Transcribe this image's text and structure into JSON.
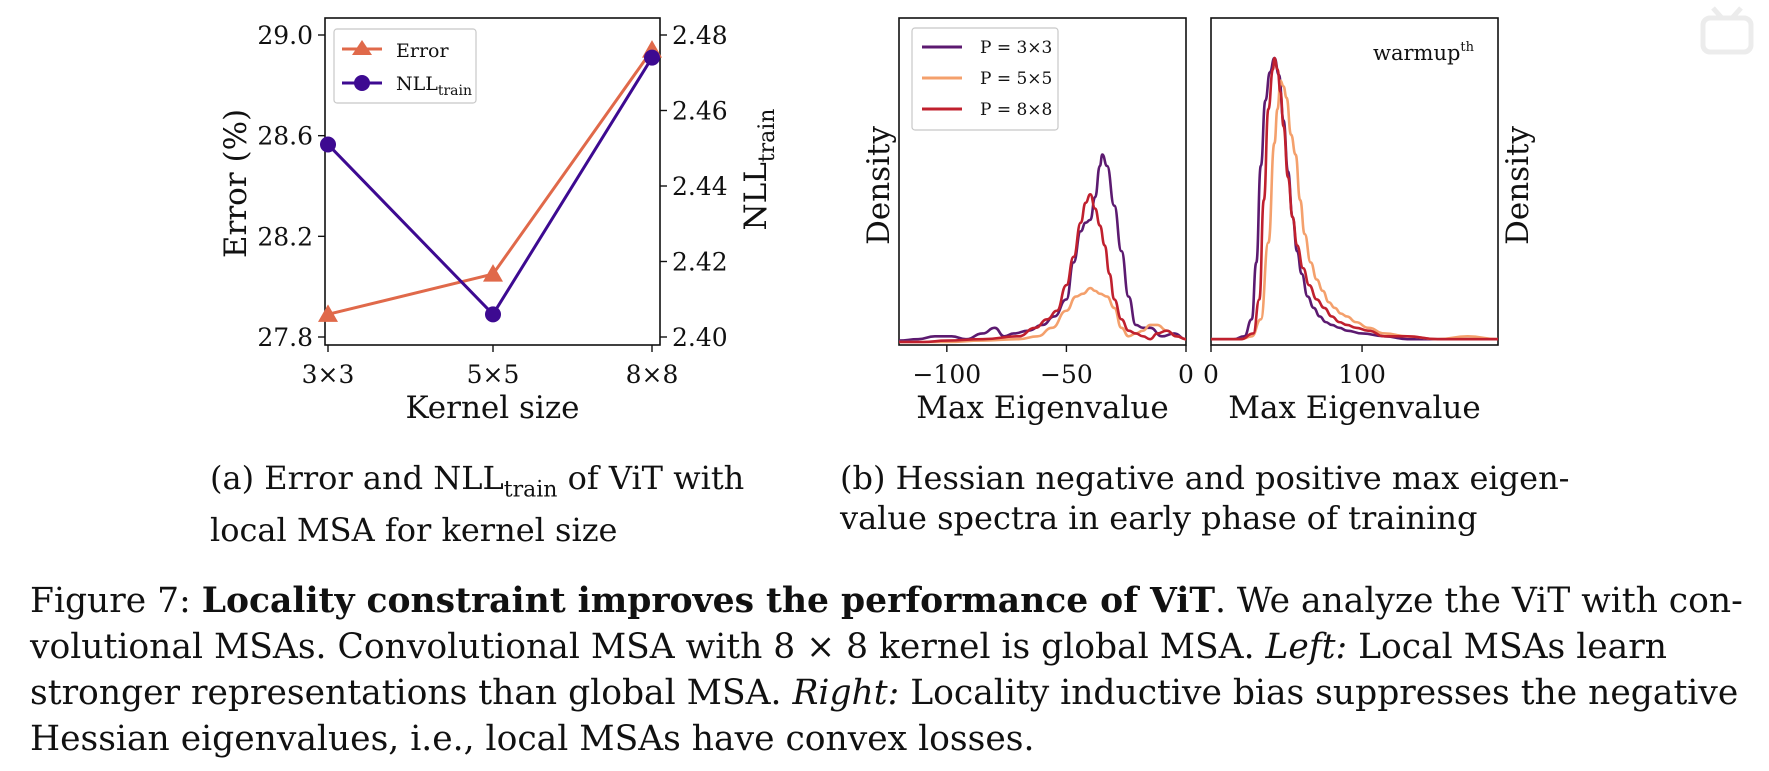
{
  "chart_data": [
    {
      "type": "line",
      "panel": "a",
      "categories": [
        "3×3",
        "5×5",
        "8×8"
      ],
      "xlabel": "Kernel size",
      "ylabel": "Error (%)",
      "ylabel_right_base": "NLL",
      "ylabel_right_sub": "train",
      "ylim": [
        27.8,
        29.0
      ],
      "ylim_right": [
        2.4,
        2.48
      ],
      "yticks": [
        27.8,
        28.2,
        28.6,
        29.0
      ],
      "yticks_right": [
        2.4,
        2.42,
        2.44,
        2.46,
        2.48
      ],
      "tick_labels_left": [
        "27.8",
        "28.2",
        "28.6",
        "29.0"
      ],
      "tick_labels_right": [
        "2.40",
        "2.42",
        "2.44",
        "2.46",
        "2.48"
      ],
      "legend_position": "top-left",
      "series": [
        {
          "name": "Error",
          "axis": "left",
          "marker": "triangle",
          "color": "#e0694a",
          "values": [
            27.89,
            28.05,
            28.94
          ]
        },
        {
          "name_base": "NLL",
          "name_sub": "train",
          "axis": "right",
          "marker": "circle",
          "color": "#3d0a91",
          "values": [
            2.451,
            2.406,
            2.474
          ]
        }
      ]
    },
    {
      "type": "line",
      "panel": "b-negative",
      "xlabel": "Max Eigenvalue",
      "ylabel": "Density",
      "xlim": [
        -120,
        0
      ],
      "ylim": [
        0,
        1
      ],
      "xticks": [
        -100,
        -50,
        0
      ],
      "tick_labels_x": [
        "−100",
        "−50",
        "0"
      ],
      "legend_position": "top-left",
      "series": [
        {
          "name": "P = 3×3",
          "color": "#5c1a70",
          "x": [
            -120,
            -112,
            -105,
            -98,
            -92,
            -85,
            -80,
            -76,
            -72,
            -66,
            -60,
            -55,
            -50,
            -47,
            -44,
            -42,
            -40,
            -38,
            -36,
            -35,
            -33,
            -30,
            -27,
            -24,
            -21,
            -18,
            -15,
            -10,
            -5,
            0
          ],
          "y": [
            0.005,
            0.01,
            0.02,
            0.02,
            0.01,
            0.03,
            0.05,
            0.02,
            0.03,
            0.04,
            0.06,
            0.09,
            0.15,
            0.28,
            0.39,
            0.42,
            0.43,
            0.51,
            0.62,
            0.66,
            0.62,
            0.48,
            0.32,
            0.16,
            0.06,
            0.05,
            0.05,
            0.02,
            0.03,
            0.01
          ]
        },
        {
          "name": "P = 5×5",
          "color": "#f4a06c",
          "x": [
            -120,
            -100,
            -85,
            -70,
            -62,
            -56,
            -50,
            -46,
            -43,
            -40,
            -38,
            -36,
            -33,
            -30,
            -27,
            -24,
            -21,
            -18,
            -15,
            -12,
            -8,
            -4,
            0
          ],
          "y": [
            0,
            0,
            0.005,
            0.01,
            0.02,
            0.05,
            0.11,
            0.16,
            0.17,
            0.19,
            0.18,
            0.17,
            0.16,
            0.12,
            0.05,
            0.02,
            0.03,
            0.04,
            0.06,
            0.06,
            0.04,
            0.02,
            0.01
          ]
        },
        {
          "name": "P = 8×8",
          "color": "#c0202e",
          "x": [
            -120,
            -110,
            -100,
            -85,
            -70,
            -63,
            -58,
            -54,
            -50,
            -47,
            -44,
            -42,
            -40,
            -38,
            -36,
            -34,
            -32,
            -30,
            -27,
            -24,
            -21,
            -18,
            -15,
            -12,
            -8,
            -4,
            0
          ],
          "y": [
            0,
            0,
            0.005,
            0.01,
            0.02,
            0.05,
            0.08,
            0.11,
            0.2,
            0.3,
            0.42,
            0.49,
            0.52,
            0.47,
            0.41,
            0.34,
            0.24,
            0.15,
            0.08,
            0.04,
            0.03,
            0.02,
            0.01,
            0.03,
            0.04,
            0.02,
            0.01
          ]
        }
      ]
    },
    {
      "type": "line",
      "panel": "b-positive",
      "xlabel": "Max Eigenvalue",
      "ylabel": "Density",
      "xlim": [
        0,
        190
      ],
      "ylim": [
        0,
        1
      ],
      "xticks": [
        0,
        100
      ],
      "tick_labels_x": [
        "0",
        "100"
      ],
      "annotation": "warmup",
      "annotation_sup": "th",
      "series": [
        {
          "name": "P = 3×3",
          "color": "#5c1a70",
          "x": [
            0,
            15,
            22,
            27,
            30,
            33,
            36,
            39,
            42,
            45,
            48,
            51,
            54,
            57,
            60,
            64,
            68,
            72,
            76,
            80,
            85,
            90,
            100,
            115,
            130,
            150,
            170,
            190
          ],
          "y": [
            0.01,
            0.01,
            0.02,
            0.08,
            0.28,
            0.62,
            0.85,
            0.95,
            1.0,
            0.94,
            0.78,
            0.6,
            0.44,
            0.32,
            0.24,
            0.16,
            0.12,
            0.09,
            0.07,
            0.06,
            0.05,
            0.04,
            0.03,
            0.02,
            0.01,
            0.01,
            0.01,
            0.01
          ]
        },
        {
          "name": "P = 5×5",
          "color": "#f4a06c",
          "x": [
            0,
            20,
            27,
            33,
            38,
            42,
            44,
            46,
            48,
            50,
            53,
            56,
            59,
            62,
            66,
            70,
            74,
            78,
            82,
            86,
            90,
            96,
            104,
            115,
            130,
            150,
            170,
            190
          ],
          "y": [
            0.01,
            0.01,
            0.02,
            0.08,
            0.35,
            0.7,
            0.82,
            0.92,
            0.9,
            0.86,
            0.73,
            0.66,
            0.5,
            0.38,
            0.28,
            0.22,
            0.18,
            0.14,
            0.12,
            0.1,
            0.09,
            0.07,
            0.05,
            0.03,
            0.02,
            0.01,
            0.02,
            0.01
          ]
        },
        {
          "name": "P = 8×8",
          "color": "#c0202e",
          "x": [
            0,
            20,
            28,
            32,
            35,
            38,
            41,
            42,
            44,
            46,
            48,
            51,
            54,
            57,
            61,
            65,
            70,
            75,
            80,
            85,
            90,
            96,
            104,
            115,
            130,
            150,
            170,
            190
          ],
          "y": [
            0.01,
            0.01,
            0.03,
            0.15,
            0.5,
            0.82,
            0.96,
            1.0,
            0.96,
            0.88,
            0.76,
            0.58,
            0.44,
            0.34,
            0.26,
            0.2,
            0.15,
            0.12,
            0.09,
            0.07,
            0.06,
            0.05,
            0.04,
            0.02,
            0.02,
            0.01,
            0.01,
            0.01
          ]
        }
      ]
    }
  ],
  "captions": {
    "a_prefix": "(a) Error and NLL",
    "a_sub": "train",
    "a_suffix": " of ViT with local MSA for kernel size",
    "b": "(b) Hessian negative and positive max eigen-value spectra in early phase of training"
  },
  "figure_caption": {
    "label": "Figure 7: ",
    "bold": "Locality constraint improves the performance of ViT",
    "text1": ". We analyze the ViT with con-volutional MSAs. Convolutional MSA with 8 × 8 kernel is global MSA. ",
    "left_label": "Left:",
    "text2": "  Local MSAs learn stronger representations than global MSA. ",
    "right_label": "Right:",
    "text3": "  Locality inductive bias suppresses the negative Hessian eigenvalues, i.e., local MSAs have convex losses."
  },
  "watermark_icon": "bilibili-logo-icon"
}
